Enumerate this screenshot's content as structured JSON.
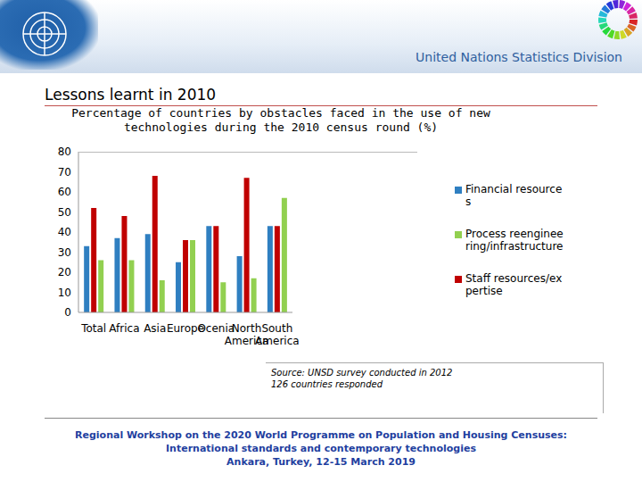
{
  "header": "United Nations Statistics Division",
  "slide_title": "Lessons learnt in 2010",
  "source": [
    "Source: UNSD survey conducted in 2012",
    "126 countries responded"
  ],
  "footer": [
    "Regional Workshop on the 2020 World Programme on Population and Housing Censuses: International standards and contemporary technologies",
    "Ankara, Turkey, 12-15 March 2019"
  ],
  "chart_data": {
    "type": "bar",
    "title": "Percentage of countries by obstacles faced in the use of new technologies during the 2010 census round (%)",
    "categories": [
      "Total",
      "Africa",
      "Asia",
      "Europe",
      "Ocenia",
      "North America",
      "South America"
    ],
    "series": [
      {
        "name": "Financial resources",
        "color": "#2f7fc1",
        "values": [
          33,
          37,
          39,
          25,
          43,
          28,
          43
        ]
      },
      {
        "name": "Staff resources/expertise",
        "color": "#c00000",
        "values": [
          52,
          48,
          68,
          36,
          43,
          67,
          43
        ]
      },
      {
        "name": "Process reengineering/infrastructure",
        "color": "#92d050",
        "values": [
          26,
          26,
          16,
          36,
          15,
          17,
          57
        ]
      }
    ],
    "ylim": [
      0,
      80
    ],
    "yticks": [
      0,
      10,
      20,
      30,
      40,
      50,
      60,
      70,
      80
    ],
    "grid": false,
    "legend": "right"
  }
}
